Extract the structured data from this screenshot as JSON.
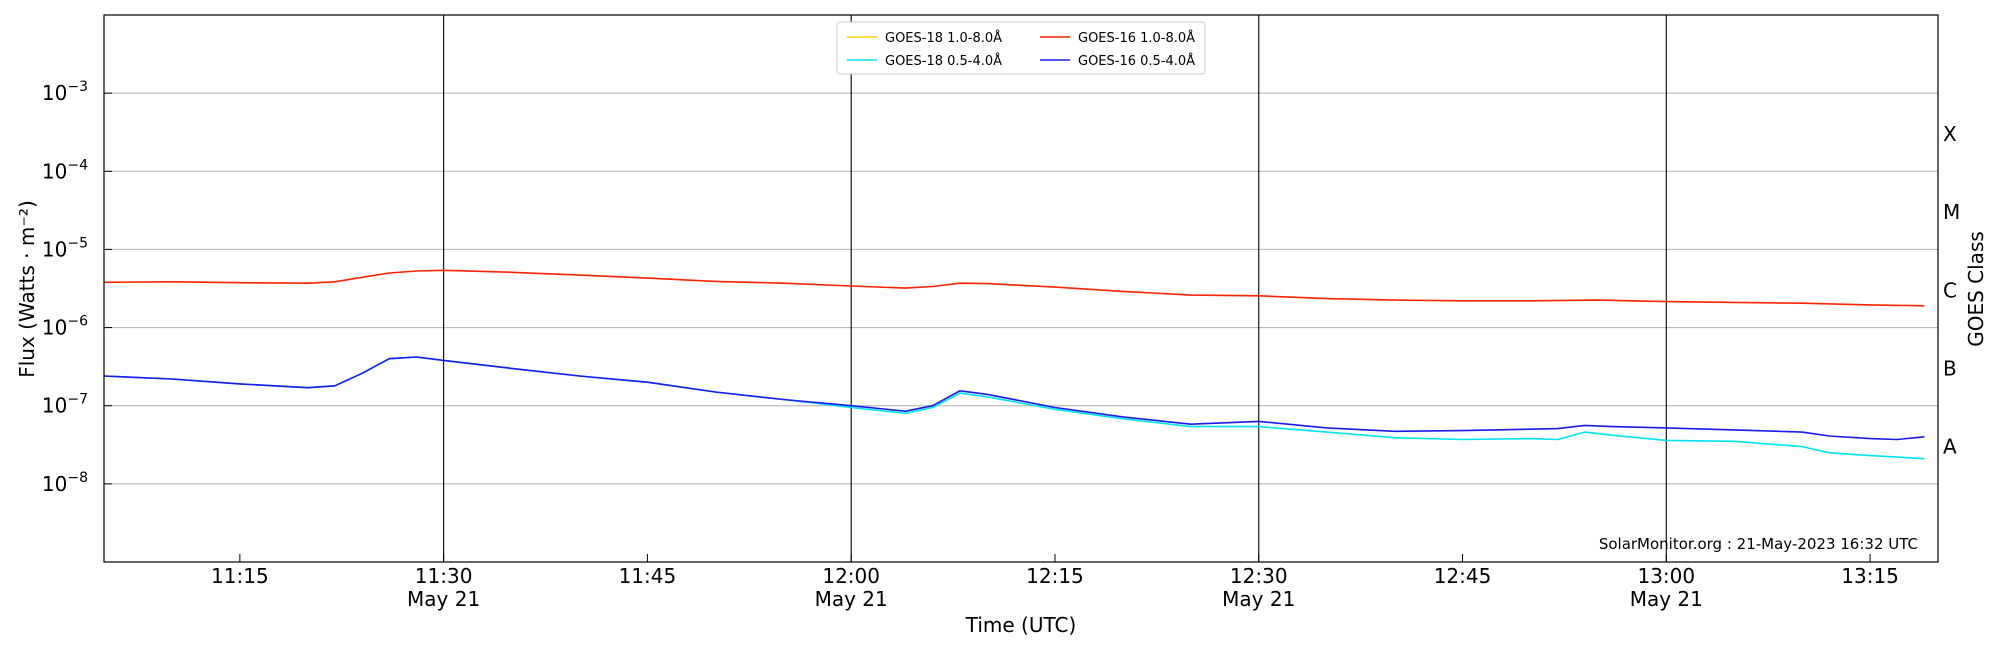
{
  "chart_data": {
    "type": "line",
    "xlabel": "Time (UTC)",
    "ylabel": "Flux (Watts · m⁻²)",
    "ylabel_right": "GOES Class",
    "yscale": "log",
    "xlim": [
      "11:05",
      "13:20"
    ],
    "ylim": [
      1e-09,
      0.01
    ],
    "y_ticks": [
      {
        "value": 0.001,
        "base": "10",
        "exp": "−3"
      },
      {
        "value": 0.0001,
        "base": "10",
        "exp": "−4"
      },
      {
        "value": 1e-05,
        "base": "10",
        "exp": "−5"
      },
      {
        "value": 1e-06,
        "base": "10",
        "exp": "−6"
      },
      {
        "value": 1e-07,
        "base": "10",
        "exp": "−7"
      },
      {
        "value": 1e-08,
        "base": "10",
        "exp": "−8"
      }
    ],
    "x_ticks": [
      {
        "time": "11:15",
        "label": "11:15",
        "date": ""
      },
      {
        "time": "11:30",
        "label": "11:30",
        "date": "May 21"
      },
      {
        "time": "11:45",
        "label": "11:45",
        "date": ""
      },
      {
        "time": "12:00",
        "label": "12:00",
        "date": "May 21"
      },
      {
        "time": "12:15",
        "label": "12:15",
        "date": ""
      },
      {
        "time": "12:30",
        "label": "12:30",
        "date": "May 21"
      },
      {
        "time": "12:45",
        "label": "12:45",
        "date": ""
      },
      {
        "time": "13:00",
        "label": "13:00",
        "date": "May 21"
      },
      {
        "time": "13:15",
        "label": "13:15",
        "date": ""
      }
    ],
    "day_markers": [
      "11:30",
      "12:00",
      "12:30",
      "13:00"
    ],
    "class_labels": [
      {
        "label": "X",
        "value": 0.0003
      },
      {
        "label": "M",
        "value": 3e-05
      },
      {
        "label": "C",
        "value": 3e-06
      },
      {
        "label": "B",
        "value": 3e-07
      },
      {
        "label": "A",
        "value": 3e-08
      }
    ],
    "grid": true,
    "legend_position": "top-center",
    "credit": "SolarMonitor.org : 21-May-2023 16:32 UTC",
    "series": [
      {
        "name": "GOES-18 1.0-8.0Å",
        "color": "#ffd700",
        "points": []
      },
      {
        "name": "GOES-18 0.5-4.0Å",
        "color": "#00e5ee",
        "points": [
          [
            "11:05",
            2.4e-07
          ],
          [
            "11:10",
            2.2e-07
          ],
          [
            "11:15",
            1.9e-07
          ],
          [
            "11:20",
            1.7e-07
          ],
          [
            "11:22",
            1.8e-07
          ],
          [
            "11:24",
            2.6e-07
          ],
          [
            "11:26",
            4e-07
          ],
          [
            "11:28",
            4.2e-07
          ],
          [
            "11:30",
            3.8e-07
          ],
          [
            "11:35",
            3e-07
          ],
          [
            "11:40",
            2.4e-07
          ],
          [
            "11:45",
            2e-07
          ],
          [
            "11:50",
            1.5e-07
          ],
          [
            "11:55",
            1.2e-07
          ],
          [
            "12:00",
            9.5e-08
          ],
          [
            "12:04",
            8e-08
          ],
          [
            "12:06",
            9.5e-08
          ],
          [
            "12:08",
            1.45e-07
          ],
          [
            "12:10",
            1.3e-07
          ],
          [
            "12:15",
            9e-08
          ],
          [
            "12:20",
            6.8e-08
          ],
          [
            "12:25",
            5.4e-08
          ],
          [
            "12:30",
            5.4e-08
          ],
          [
            "12:35",
            4.6e-08
          ],
          [
            "12:40",
            3.9e-08
          ],
          [
            "12:45",
            3.7e-08
          ],
          [
            "12:50",
            3.8e-08
          ],
          [
            "12:52",
            3.7e-08
          ],
          [
            "12:54",
            4.6e-08
          ],
          [
            "12:56",
            4.2e-08
          ],
          [
            "13:00",
            3.6e-08
          ],
          [
            "13:05",
            3.5e-08
          ],
          [
            "13:10",
            3e-08
          ],
          [
            "13:12",
            2.5e-08
          ],
          [
            "13:15",
            2.3e-08
          ],
          [
            "13:17",
            2.2e-08
          ],
          [
            "13:19",
            2.1e-08
          ]
        ]
      },
      {
        "name": "GOES-16 1.0-8.0Å",
        "color": "#ff2200",
        "points": [
          [
            "11:05",
            3.8e-06
          ],
          [
            "11:10",
            3.85e-06
          ],
          [
            "11:15",
            3.75e-06
          ],
          [
            "11:20",
            3.7e-06
          ],
          [
            "11:22",
            3.85e-06
          ],
          [
            "11:24",
            4.4e-06
          ],
          [
            "11:26",
            5e-06
          ],
          [
            "11:28",
            5.3e-06
          ],
          [
            "11:30",
            5.4e-06
          ],
          [
            "11:35",
            5.1e-06
          ],
          [
            "11:40",
            4.7e-06
          ],
          [
            "11:45",
            4.3e-06
          ],
          [
            "11:50",
            3.9e-06
          ],
          [
            "11:55",
            3.7e-06
          ],
          [
            "12:00",
            3.4e-06
          ],
          [
            "12:04",
            3.2e-06
          ],
          [
            "12:06",
            3.35e-06
          ],
          [
            "12:08",
            3.7e-06
          ],
          [
            "12:10",
            3.65e-06
          ],
          [
            "12:15",
            3.3e-06
          ],
          [
            "12:20",
            2.9e-06
          ],
          [
            "12:25",
            2.6e-06
          ],
          [
            "12:30",
            2.55e-06
          ],
          [
            "12:35",
            2.35e-06
          ],
          [
            "12:40",
            2.25e-06
          ],
          [
            "12:45",
            2.2e-06
          ],
          [
            "12:50",
            2.2e-06
          ],
          [
            "12:55",
            2.25e-06
          ],
          [
            "13:00",
            2.15e-06
          ],
          [
            "13:05",
            2.1e-06
          ],
          [
            "13:10",
            2.05e-06
          ],
          [
            "13:15",
            1.95e-06
          ],
          [
            "13:19",
            1.9e-06
          ]
        ]
      },
      {
        "name": "GOES-16 0.5-4.0Å",
        "color": "#1a1aee",
        "points": [
          [
            "11:05",
            2.4e-07
          ],
          [
            "11:10",
            2.2e-07
          ],
          [
            "11:15",
            1.9e-07
          ],
          [
            "11:20",
            1.7e-07
          ],
          [
            "11:22",
            1.8e-07
          ],
          [
            "11:24",
            2.6e-07
          ],
          [
            "11:26",
            4e-07
          ],
          [
            "11:28",
            4.2e-07
          ],
          [
            "11:30",
            3.8e-07
          ],
          [
            "11:35",
            3e-07
          ],
          [
            "11:40",
            2.4e-07
          ],
          [
            "11:45",
            2e-07
          ],
          [
            "11:50",
            1.5e-07
          ],
          [
            "11:55",
            1.2e-07
          ],
          [
            "12:00",
            1e-07
          ],
          [
            "12:04",
            8.5e-08
          ],
          [
            "12:06",
            1e-07
          ],
          [
            "12:08",
            1.55e-07
          ],
          [
            "12:10",
            1.4e-07
          ],
          [
            "12:15",
            9.5e-08
          ],
          [
            "12:20",
            7.2e-08
          ],
          [
            "12:25",
            5.8e-08
          ],
          [
            "12:30",
            6.3e-08
          ],
          [
            "12:35",
            5.2e-08
          ],
          [
            "12:40",
            4.7e-08
          ],
          [
            "12:45",
            4.8e-08
          ],
          [
            "12:50",
            5e-08
          ],
          [
            "12:52",
            5.1e-08
          ],
          [
            "12:54",
            5.6e-08
          ],
          [
            "12:56",
            5.4e-08
          ],
          [
            "13:00",
            5.2e-08
          ],
          [
            "13:05",
            4.9e-08
          ],
          [
            "13:10",
            4.6e-08
          ],
          [
            "13:12",
            4.1e-08
          ],
          [
            "13:15",
            3.8e-08
          ],
          [
            "13:17",
            3.7e-08
          ],
          [
            "13:19",
            4e-08
          ]
        ]
      }
    ]
  }
}
